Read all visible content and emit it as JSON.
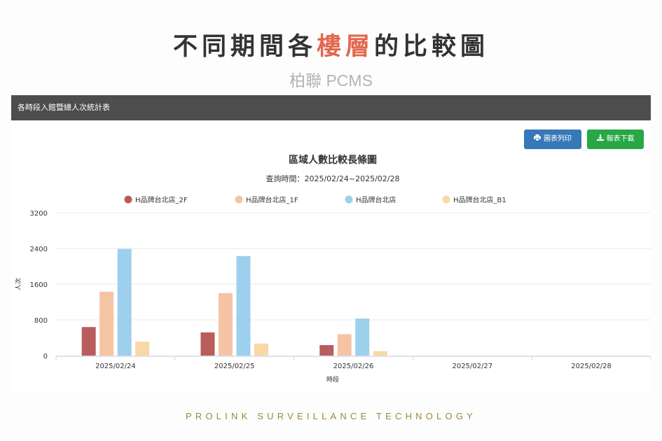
{
  "hero": {
    "title_part1": "不同期間各",
    "title_highlight": "樓層",
    "title_part2": "的比較圖",
    "subtitle": "柏聯 PCMS"
  },
  "panel": {
    "header": "各時段入館暨總人次統計表",
    "print_label": "圖表列印",
    "download_label": "報表下載"
  },
  "footer": "PROLINK SURVEILLANCE TECHNOLOGY",
  "colors": {
    "series": [
      "#b85c5c",
      "#f5c4a5",
      "#9dd0ec",
      "#f7d8a6"
    ],
    "accent_title": "#e2684f",
    "print_button": "#3778b8",
    "download_button": "#28a745"
  },
  "chart_data": {
    "type": "bar",
    "title": "區域人數比較長條圖",
    "subtitle": "查詢時間：2025/02/24~2025/02/28",
    "xlabel": "時段",
    "ylabel": "人次",
    "categories": [
      "2025/02/24",
      "2025/02/25",
      "2025/02/26",
      "2025/02/27",
      "2025/02/28"
    ],
    "ylim": [
      0,
      3200
    ],
    "yticks": [
      0,
      800,
      1600,
      2400,
      3200
    ],
    "grid": true,
    "legend": "top",
    "series": [
      {
        "name": "H品牌台北店_2F",
        "values": [
          640,
          520,
          235,
          0,
          0
        ]
      },
      {
        "name": "H品牌台北店_1F",
        "values": [
          1430,
          1400,
          480,
          0,
          0
        ]
      },
      {
        "name": "H品牌台北店",
        "values": [
          2390,
          2230,
          830,
          0,
          0
        ]
      },
      {
        "name": "H品牌台北店_B1",
        "values": [
          310,
          270,
          100,
          0,
          0
        ]
      }
    ]
  }
}
